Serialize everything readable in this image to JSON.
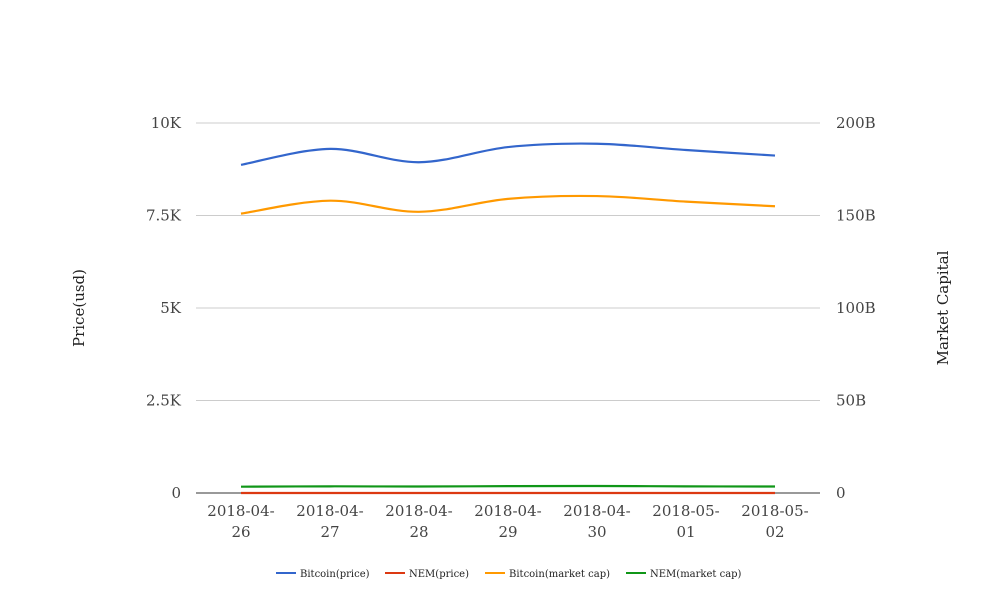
{
  "chart_data": {
    "type": "line",
    "title": "",
    "categories": [
      [
        "2018-04-",
        "26"
      ],
      [
        "2018-04-",
        "27"
      ],
      [
        "2018-04-",
        "28"
      ],
      [
        "2018-04-",
        "29"
      ],
      [
        "2018-04-",
        "30"
      ],
      [
        "2018-05-",
        "01"
      ],
      [
        "2018-05-",
        "02"
      ]
    ],
    "y_left": {
      "label": "Price(usd)",
      "range": [
        0,
        10000
      ],
      "ticks": [
        0,
        2500,
        5000,
        7500,
        10000
      ],
      "tick_labels": [
        "0",
        "2.5K",
        "5K",
        "7.5K",
        "10K"
      ]
    },
    "y_right": {
      "label": "Market Capital",
      "range": [
        0,
        200000000000
      ],
      "ticks": [
        0,
        50000000000,
        100000000000,
        150000000000,
        200000000000
      ],
      "tick_labels": [
        "0",
        "50B",
        "100B",
        "150B",
        "200B"
      ]
    },
    "grid": true,
    "legend_position": "bottom",
    "series": [
      {
        "name": "Bitcoin(price)",
        "axis": "left",
        "color": "#3366cc",
        "values": [
          8870,
          9300,
          8940,
          9350,
          9440,
          9270,
          9120
        ]
      },
      {
        "name": "NEM(price)",
        "axis": "left",
        "color": "#dc3912",
        "values": [
          0.34,
          0.36,
          0.35,
          0.37,
          0.38,
          0.36,
          0.35
        ]
      },
      {
        "name": "Bitcoin(market cap)",
        "axis": "right",
        "color": "#ff9900",
        "values": [
          151000000000,
          158000000000,
          152000000000,
          159000000000,
          160500000000,
          157500000000,
          155000000000
        ]
      },
      {
        "name": "NEM(market cap)",
        "axis": "right",
        "color": "#109618",
        "values": [
          3400000000,
          3600000000,
          3500000000,
          3700000000,
          3800000000,
          3600000000,
          3500000000
        ]
      }
    ]
  }
}
